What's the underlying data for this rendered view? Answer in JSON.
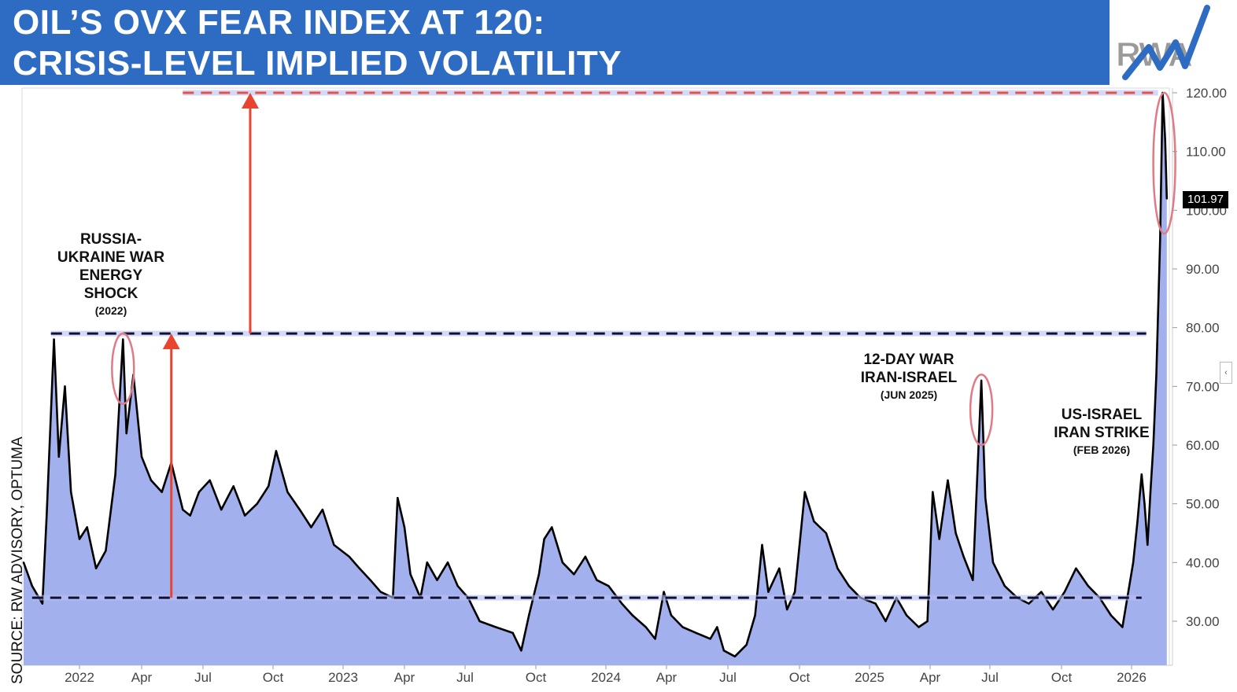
{
  "header": {
    "title_line_1": "OIL’S OVX FEAR INDEX AT 120:",
    "title_line_2": "CRISIS-LEVEL IMPLIED VOLATILITY",
    "logo_text": "RWA",
    "background_color": "#2e6cc4"
  },
  "source_note": "SOURCE: RW ADVISORY, OPTUMA",
  "last_value_label": "101.97",
  "collapse_icon": "chevron-left-icon",
  "annotations": {
    "russia": {
      "lines": [
        "RUSSIA-",
        "UKRAINE WAR",
        "ENERGY",
        "SHOCK"
      ],
      "sub": "(2022)"
    },
    "twelve_day": {
      "lines": [
        "12-DAY WAR",
        "IRAN-ISRAEL"
      ],
      "sub": "(JUN 2025)"
    },
    "us_israel": {
      "lines": [
        "US-ISRAEL",
        "IRAN STRIKE"
      ],
      "sub": "(FEB 2026)"
    }
  },
  "colors": {
    "line": "#000000",
    "area_fill": "#a3b0ee",
    "dashed_line": "#111133",
    "dashed_glow": "#b8c0f5",
    "top_dashed_line": "#e0564a",
    "arrow": "#e8442f",
    "circle": "#e07a85"
  },
  "chart_data": {
    "type": "area",
    "title": "OIL’S OVX FEAR INDEX AT 120: CRISIS-LEVEL IMPLIED VOLATILITY",
    "ylim": [
      24,
      121
    ],
    "y_ticks": [
      "30.00",
      "40.00",
      "50.00",
      "60.00",
      "70.00",
      "80.00",
      "90.00",
      "100.00",
      "110.00",
      "120.00"
    ],
    "x_tick_labels": [
      "2022",
      "Apr",
      "Jul",
      "Oct",
      "2023",
      "Apr",
      "Jul",
      "Oct",
      "2024",
      "Apr",
      "Jul",
      "Oct",
      "2025",
      "Apr",
      "Jul",
      "Oct",
      "2026"
    ],
    "x_tick_dates": [
      "2022-01-01",
      "2022-04-01",
      "2022-07-01",
      "2022-10-01",
      "2023-01-01",
      "2023-04-01",
      "2023-07-01",
      "2023-10-01",
      "2024-01-01",
      "2024-04-01",
      "2024-07-01",
      "2024-10-01",
      "2025-01-01",
      "2025-04-01",
      "2025-07-01",
      "2025-10-01",
      "2026-01-01"
    ],
    "x_range": [
      "2021-10-01",
      "2026-04-01"
    ],
    "last_value": 101.97,
    "reference_levels": [
      {
        "value": 34,
        "from": "2021-10-15",
        "to": "2026-01-25",
        "color": "#111133"
      },
      {
        "value": 79,
        "from": "2021-11-15",
        "to": "2026-02-05",
        "color": "#111133"
      },
      {
        "value": 120,
        "from": "2022-06-01",
        "to": "2026-03-05",
        "color": "#e0564a"
      }
    ],
    "arrows": [
      {
        "date": "2022-05-15",
        "from": 34,
        "to": 79
      },
      {
        "date": "2022-09-01",
        "from": 79,
        "to": 120
      }
    ],
    "highlight_circles": [
      {
        "date": "2022-03-05",
        "ycenter": 73,
        "yhalf": 6
      },
      {
        "date": "2025-06-18",
        "ycenter": 66,
        "yhalf": 6
      },
      {
        "date": "2026-03-20",
        "ycenter": 108,
        "yhalf": 12
      }
    ],
    "series": [
      {
        "points": [
          [
            "2021-10-01",
            40
          ],
          [
            "2021-10-15",
            36
          ],
          [
            "2021-11-01",
            33
          ],
          [
            "2021-11-08",
            48
          ],
          [
            "2021-11-20",
            78
          ],
          [
            "2021-11-28",
            58
          ],
          [
            "2021-12-08",
            70
          ],
          [
            "2021-12-18",
            52
          ],
          [
            "2022-01-01",
            44
          ],
          [
            "2022-01-12",
            46
          ],
          [
            "2022-01-25",
            39
          ],
          [
            "2022-02-08",
            42
          ],
          [
            "2022-02-22",
            55
          ],
          [
            "2022-03-05",
            78
          ],
          [
            "2022-03-10",
            62
          ],
          [
            "2022-03-20",
            72
          ],
          [
            "2022-04-01",
            58
          ],
          [
            "2022-04-15",
            54
          ],
          [
            "2022-05-01",
            52
          ],
          [
            "2022-05-15",
            57
          ],
          [
            "2022-06-01",
            49
          ],
          [
            "2022-06-12",
            48
          ],
          [
            "2022-06-25",
            52
          ],
          [
            "2022-07-10",
            54
          ],
          [
            "2022-07-25",
            49
          ],
          [
            "2022-08-10",
            53
          ],
          [
            "2022-08-25",
            48
          ],
          [
            "2022-09-10",
            50
          ],
          [
            "2022-09-25",
            53
          ],
          [
            "2022-10-05",
            59
          ],
          [
            "2022-10-20",
            52
          ],
          [
            "2022-11-05",
            49
          ],
          [
            "2022-11-20",
            46
          ],
          [
            "2022-12-05",
            49
          ],
          [
            "2022-12-20",
            43
          ],
          [
            "2023-01-10",
            41
          ],
          [
            "2023-01-25",
            39
          ],
          [
            "2023-02-10",
            37
          ],
          [
            "2023-02-25",
            35
          ],
          [
            "2023-03-15",
            34
          ],
          [
            "2023-03-22",
            51
          ],
          [
            "2023-04-01",
            46
          ],
          [
            "2023-04-10",
            38
          ],
          [
            "2023-04-25",
            34
          ],
          [
            "2023-05-05",
            40
          ],
          [
            "2023-05-20",
            37
          ],
          [
            "2023-06-05",
            40
          ],
          [
            "2023-06-20",
            36
          ],
          [
            "2023-07-05",
            34
          ],
          [
            "2023-07-20",
            30
          ],
          [
            "2023-08-10",
            29
          ],
          [
            "2023-09-01",
            28
          ],
          [
            "2023-09-12",
            25
          ],
          [
            "2023-09-22",
            31
          ],
          [
            "2023-10-05",
            38
          ],
          [
            "2023-10-12",
            44
          ],
          [
            "2023-10-22",
            46
          ],
          [
            "2023-11-05",
            40
          ],
          [
            "2023-11-20",
            38
          ],
          [
            "2023-12-05",
            41
          ],
          [
            "2023-12-20",
            37
          ],
          [
            "2024-01-05",
            36
          ],
          [
            "2024-01-25",
            33
          ],
          [
            "2024-02-10",
            31
          ],
          [
            "2024-03-01",
            29
          ],
          [
            "2024-03-15",
            27
          ],
          [
            "2024-03-28",
            35
          ],
          [
            "2024-04-08",
            31
          ],
          [
            "2024-04-25",
            29
          ],
          [
            "2024-05-15",
            28
          ],
          [
            "2024-06-05",
            27
          ],
          [
            "2024-06-15",
            29
          ],
          [
            "2024-06-25",
            25
          ],
          [
            "2024-07-10",
            24
          ],
          [
            "2024-07-25",
            26
          ],
          [
            "2024-08-05",
            31
          ],
          [
            "2024-08-14",
            43
          ],
          [
            "2024-08-22",
            35
          ],
          [
            "2024-09-05",
            39
          ],
          [
            "2024-09-15",
            32
          ],
          [
            "2024-09-25",
            35
          ],
          [
            "2024-10-08",
            52
          ],
          [
            "2024-10-20",
            47
          ],
          [
            "2024-11-05",
            45
          ],
          [
            "2024-11-20",
            39
          ],
          [
            "2024-12-05",
            36
          ],
          [
            "2024-12-20",
            34
          ],
          [
            "2025-01-10",
            33
          ],
          [
            "2025-01-25",
            30
          ],
          [
            "2025-02-10",
            34
          ],
          [
            "2025-02-25",
            31
          ],
          [
            "2025-03-15",
            29
          ],
          [
            "2025-03-28",
            30
          ],
          [
            "2025-04-05",
            52
          ],
          [
            "2025-04-15",
            44
          ],
          [
            "2025-04-28",
            54
          ],
          [
            "2025-05-10",
            45
          ],
          [
            "2025-05-22",
            41
          ],
          [
            "2025-06-05",
            37
          ],
          [
            "2025-06-18",
            71
          ],
          [
            "2025-06-24",
            51
          ],
          [
            "2025-07-05",
            40
          ],
          [
            "2025-07-20",
            36
          ],
          [
            "2025-08-05",
            34
          ],
          [
            "2025-08-20",
            33
          ],
          [
            "2025-09-05",
            35
          ],
          [
            "2025-09-20",
            32
          ],
          [
            "2025-10-05",
            35
          ],
          [
            "2025-10-20",
            39
          ],
          [
            "2025-11-05",
            36
          ],
          [
            "2025-11-20",
            34
          ],
          [
            "2025-12-05",
            31
          ],
          [
            "2025-12-20",
            29
          ],
          [
            "2026-01-05",
            40
          ],
          [
            "2026-01-15",
            47
          ],
          [
            "2026-01-25",
            55
          ],
          [
            "2026-02-01",
            50
          ],
          [
            "2026-02-08",
            43
          ],
          [
            "2026-02-15",
            52
          ],
          [
            "2026-02-22",
            60
          ],
          [
            "2026-03-01",
            72
          ],
          [
            "2026-03-10",
            95
          ],
          [
            "2026-03-16",
            120
          ],
          [
            "2026-03-22",
            112
          ],
          [
            "2026-03-26",
            101.97
          ]
        ]
      }
    ]
  }
}
